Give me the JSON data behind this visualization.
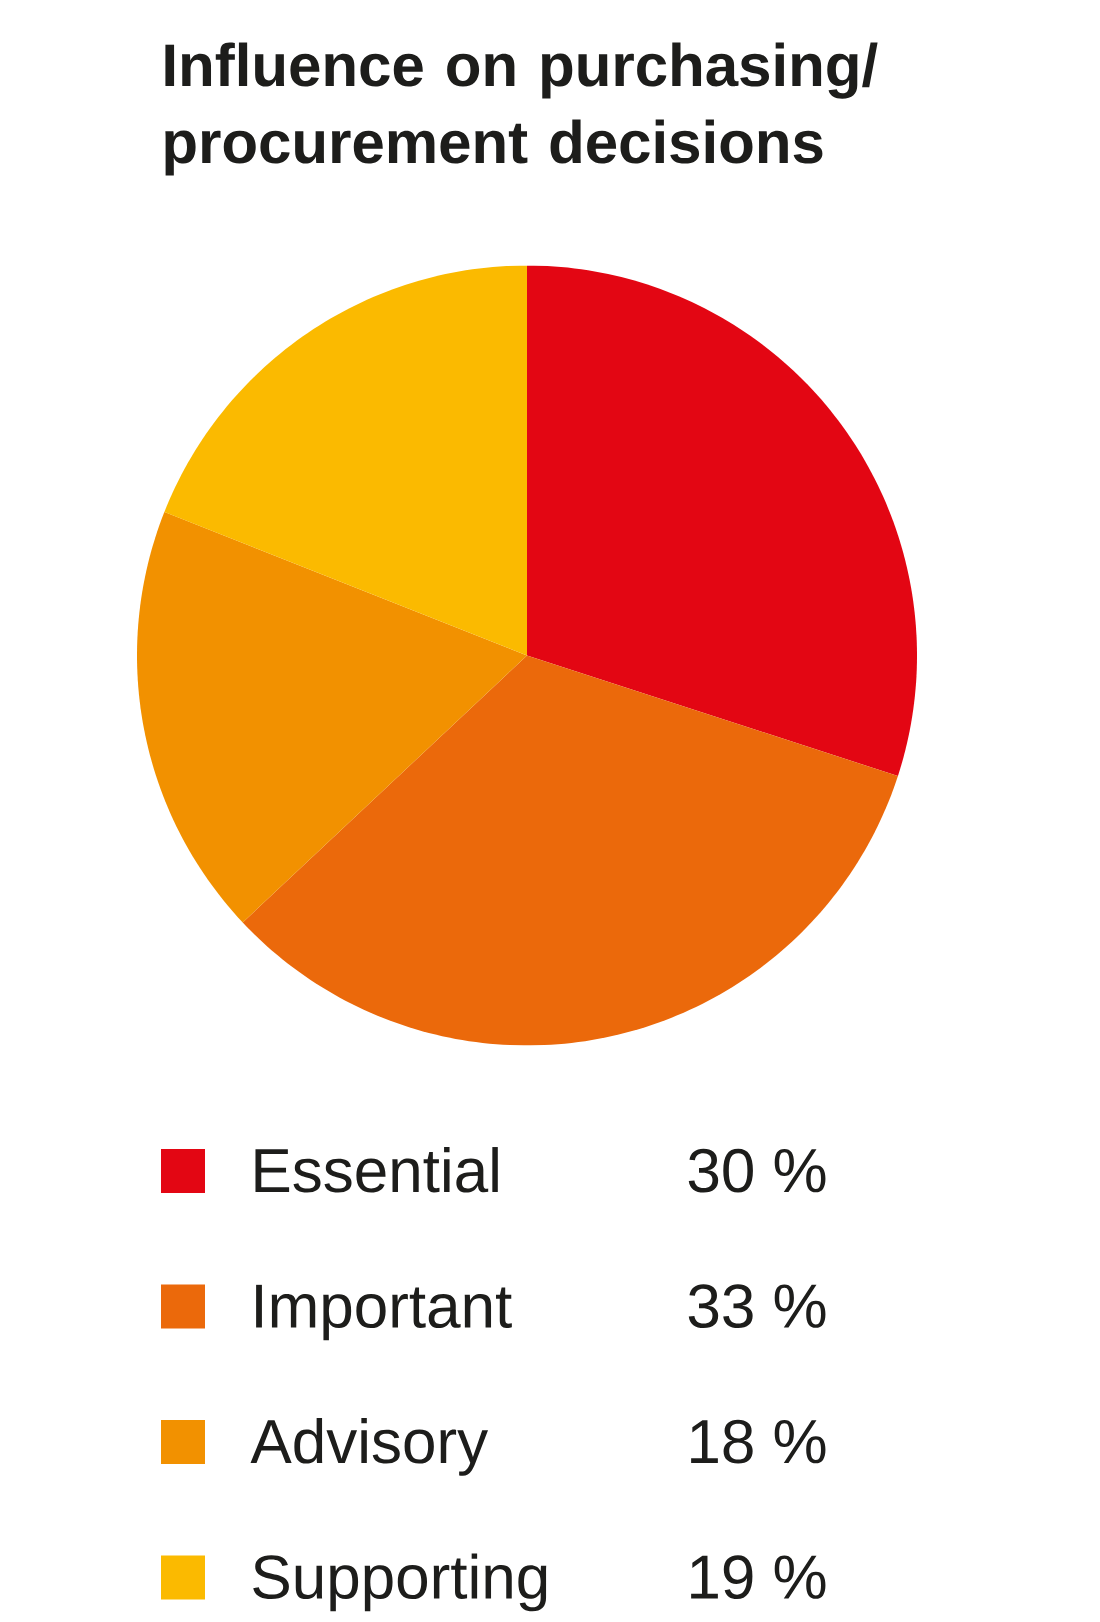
{
  "chart_data": {
    "type": "pie",
    "title": "Influence on purchasing/ procurement decisions",
    "categories": [
      "Essential",
      "Important",
      "Advisory",
      "Supporting"
    ],
    "values": [
      30,
      33,
      18,
      19
    ],
    "value_labels": [
      "30 %",
      "33 %",
      "18 %",
      "19 %"
    ],
    "colors": [
      "#e30613",
      "#eb690b",
      "#f29100",
      "#fbba00"
    ],
    "legend": "bottom"
  }
}
